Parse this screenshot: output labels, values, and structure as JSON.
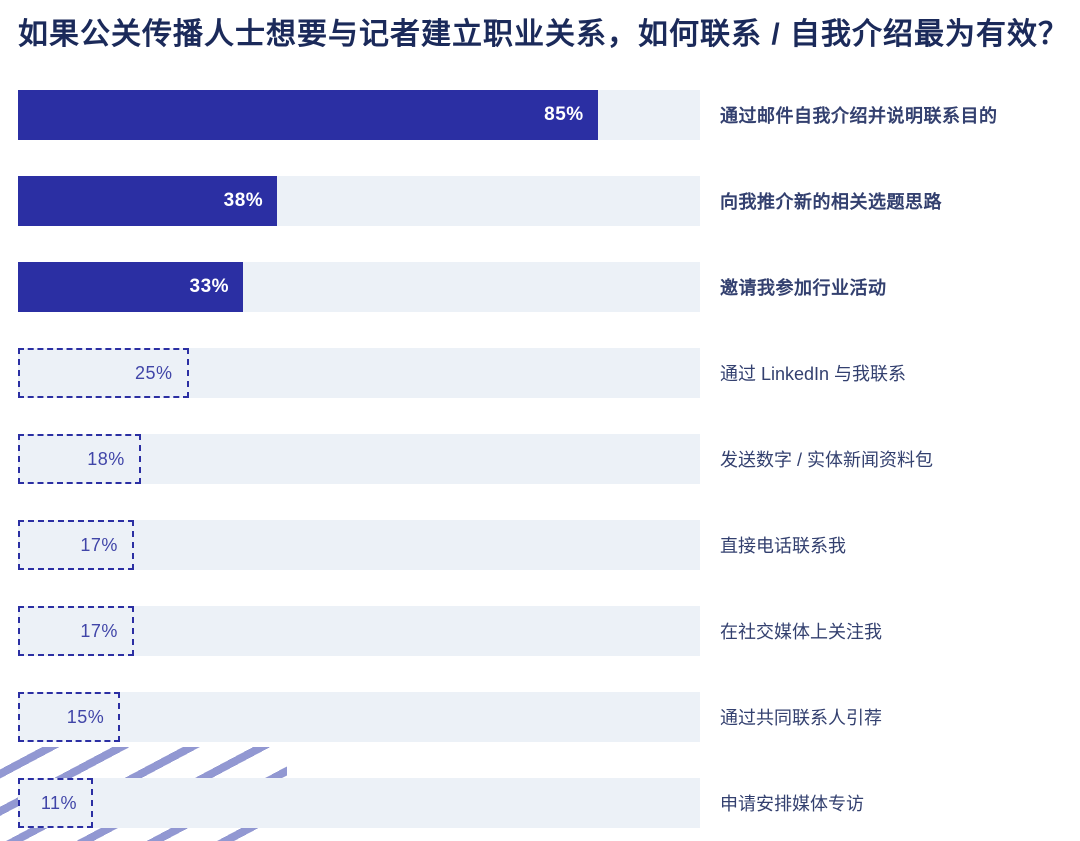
{
  "title": "如果公关传播人士想要与记者建立职业关系，如何联系 / 自我介绍最为有效？",
  "colors": {
    "bar": "#2B2FA3",
    "dash_border": "#2B2FA3",
    "dash_value_text": "#4045A8",
    "track": "#ECF1F7",
    "title_text": "#1B2A5A",
    "label_text": "#33406F",
    "value_text_on_bar": "#FFFFFF",
    "stripe": "#9298D2",
    "background": "#FFFFFF"
  },
  "chart_data": {
    "type": "bar",
    "orientation": "horizontal",
    "unit": "%",
    "xlim": [
      0,
      100
    ],
    "grid": false,
    "legend": "none",
    "title": "如果公关传播人士想要与记者建立职业关系，如何联系 / 自我介绍最为有效？",
    "categories": [
      "通过邮件自我介绍并说明联系目的",
      "向我推介新的相关选题思路",
      "邀请我参加行业活动",
      "通过 LinkedIn 与我联系",
      "发送数字 / 实体新闻资料包",
      "直接电话联系我",
      "在社交媒体上关注我",
      "通过共同联系人引荐",
      "申请安排媒体专访"
    ],
    "values": [
      85,
      38,
      33,
      25,
      18,
      17,
      17,
      15,
      11
    ],
    "value_labels": [
      "85%",
      "38%",
      "33%",
      "25%",
      "18%",
      "17%",
      "17%",
      "15%",
      "11%"
    ],
    "bar_styles": [
      "solid",
      "solid",
      "solid",
      "dashed",
      "dashed",
      "dashed",
      "dashed",
      "dashed",
      "dashed"
    ]
  }
}
